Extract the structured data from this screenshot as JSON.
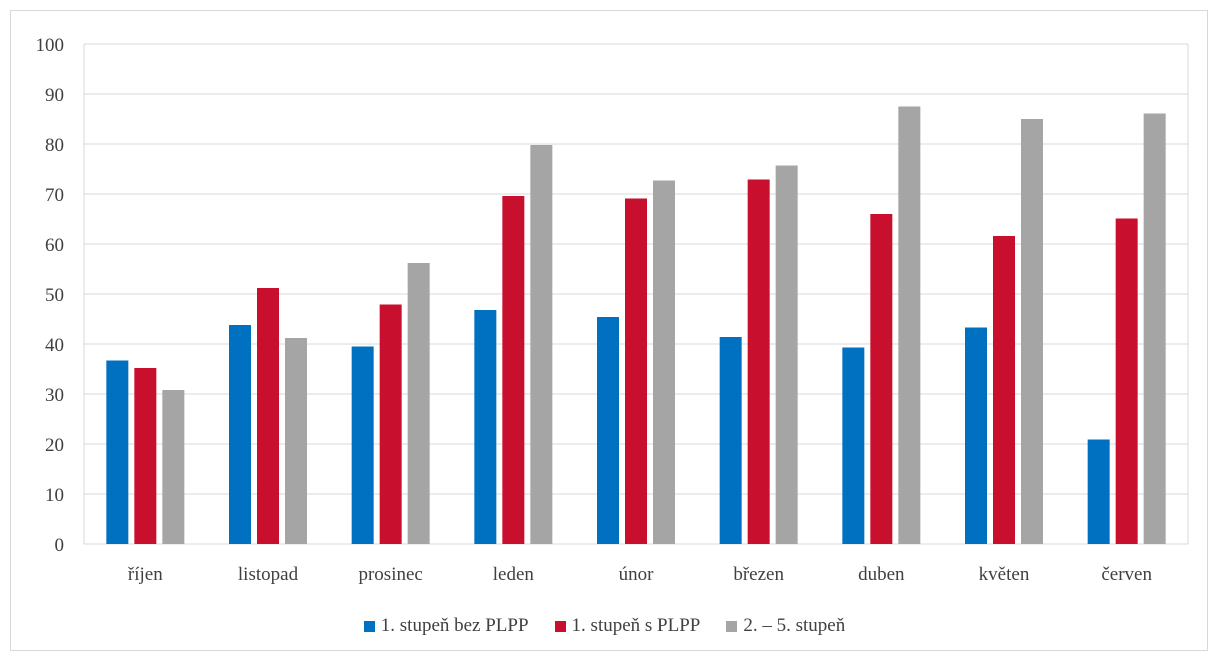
{
  "chart_data": {
    "type": "bar",
    "categories": [
      "říjen",
      "listopad",
      "prosinec",
      "leden",
      "únor",
      "březen",
      "duben",
      "květen",
      "červen"
    ],
    "series": [
      {
        "name": "1. stupeň bez PLPP",
        "color": "#0070c0",
        "values": [
          36.7,
          43.8,
          39.5,
          46.8,
          45.4,
          41.4,
          39.3,
          43.3,
          20.9
        ]
      },
      {
        "name": "1. stupeň s PLPP",
        "color": "#c8102e",
        "values": [
          35.2,
          51.2,
          47.9,
          69.6,
          69.1,
          72.9,
          66.0,
          61.6,
          65.1
        ]
      },
      {
        "name": "2. – 5. stupeň",
        "color": "#a5a5a5",
        "values": [
          30.8,
          41.2,
          56.2,
          79.8,
          72.7,
          75.7,
          87.5,
          85.0,
          86.1
        ]
      }
    ],
    "ylim": [
      0,
      100
    ],
    "yticks": [
      0,
      10,
      20,
      30,
      40,
      50,
      60,
      70,
      80,
      90,
      100
    ],
    "grid": true,
    "legend": "bottom",
    "title": "",
    "xlabel": "",
    "ylabel": ""
  }
}
